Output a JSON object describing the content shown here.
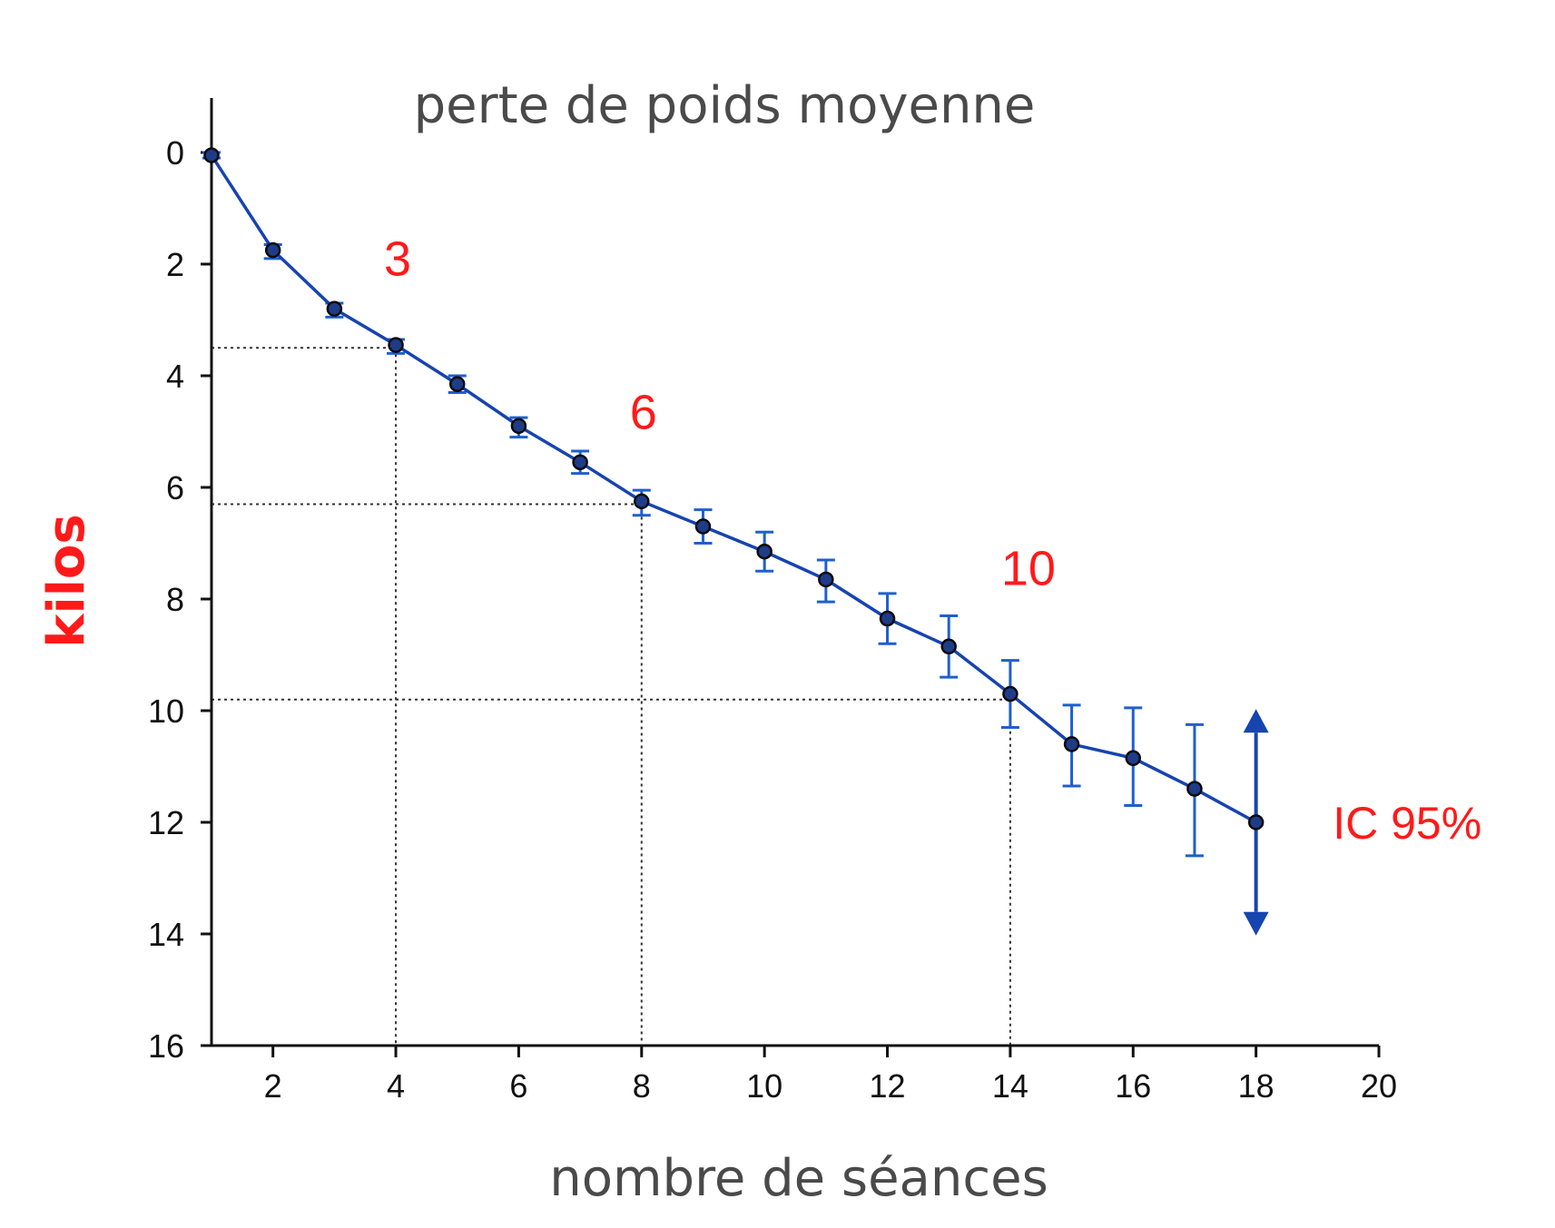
{
  "chart_data": {
    "type": "line",
    "title": "perte de poids moyenne",
    "xlabel": "nombre de séances",
    "ylabel": "kilos",
    "xlim": [
      1,
      20
    ],
    "ylim": [
      0,
      16
    ],
    "y_inverted": true,
    "grid": false,
    "x_ticks": [
      2,
      4,
      6,
      8,
      10,
      12,
      14,
      16,
      18,
      20
    ],
    "y_ticks": [
      0,
      2,
      4,
      6,
      8,
      10,
      12,
      14,
      16
    ],
    "series": [
      {
        "x": [
          1,
          2,
          3,
          4,
          5,
          6,
          7,
          8,
          9,
          10,
          11,
          12,
          13,
          14,
          15,
          16,
          17,
          18
        ],
        "y": [
          0.05,
          1.75,
          2.8,
          3.45,
          4.15,
          4.9,
          5.55,
          6.25,
          6.7,
          7.15,
          7.65,
          8.35,
          8.85,
          9.7,
          10.6,
          10.85,
          11.4,
          12.0
        ],
        "ci_low": [
          0.0,
          1.65,
          2.7,
          3.35,
          4.0,
          4.75,
          5.35,
          6.05,
          6.4,
          6.8,
          7.3,
          7.9,
          8.3,
          9.1,
          9.9,
          9.95,
          10.25,
          null
        ],
        "ci_high": [
          0.1,
          1.9,
          2.95,
          3.6,
          4.3,
          5.1,
          5.75,
          6.5,
          7.0,
          7.5,
          8.05,
          8.8,
          9.4,
          10.3,
          11.35,
          11.7,
          12.6,
          null
        ]
      }
    ],
    "reference_lines": [
      {
        "x": 4,
        "y": 3.5
      },
      {
        "x": 8,
        "y": 6.3
      },
      {
        "x": 14,
        "y": 9.8
      }
    ],
    "annotations": [
      {
        "text": "3",
        "x": 4,
        "y": 2.2
      },
      {
        "text": "6",
        "x": 8,
        "y": 4.95
      },
      {
        "text": "10",
        "x": 14,
        "y": 7.75
      },
      {
        "text": "IC 95%",
        "x": 19.25,
        "y": 12.0
      }
    ],
    "ci_arrow": {
      "x": 18,
      "y_low": 10.2,
      "y_high": 13.8
    },
    "colors": {
      "line": "#1644b0",
      "errorbar": "#1e5fd0",
      "marker": "#1f3c88",
      "annotation": "#ff1a1a",
      "axis": "#111111",
      "reference": "#333333",
      "title": "#4a4a4a"
    }
  }
}
